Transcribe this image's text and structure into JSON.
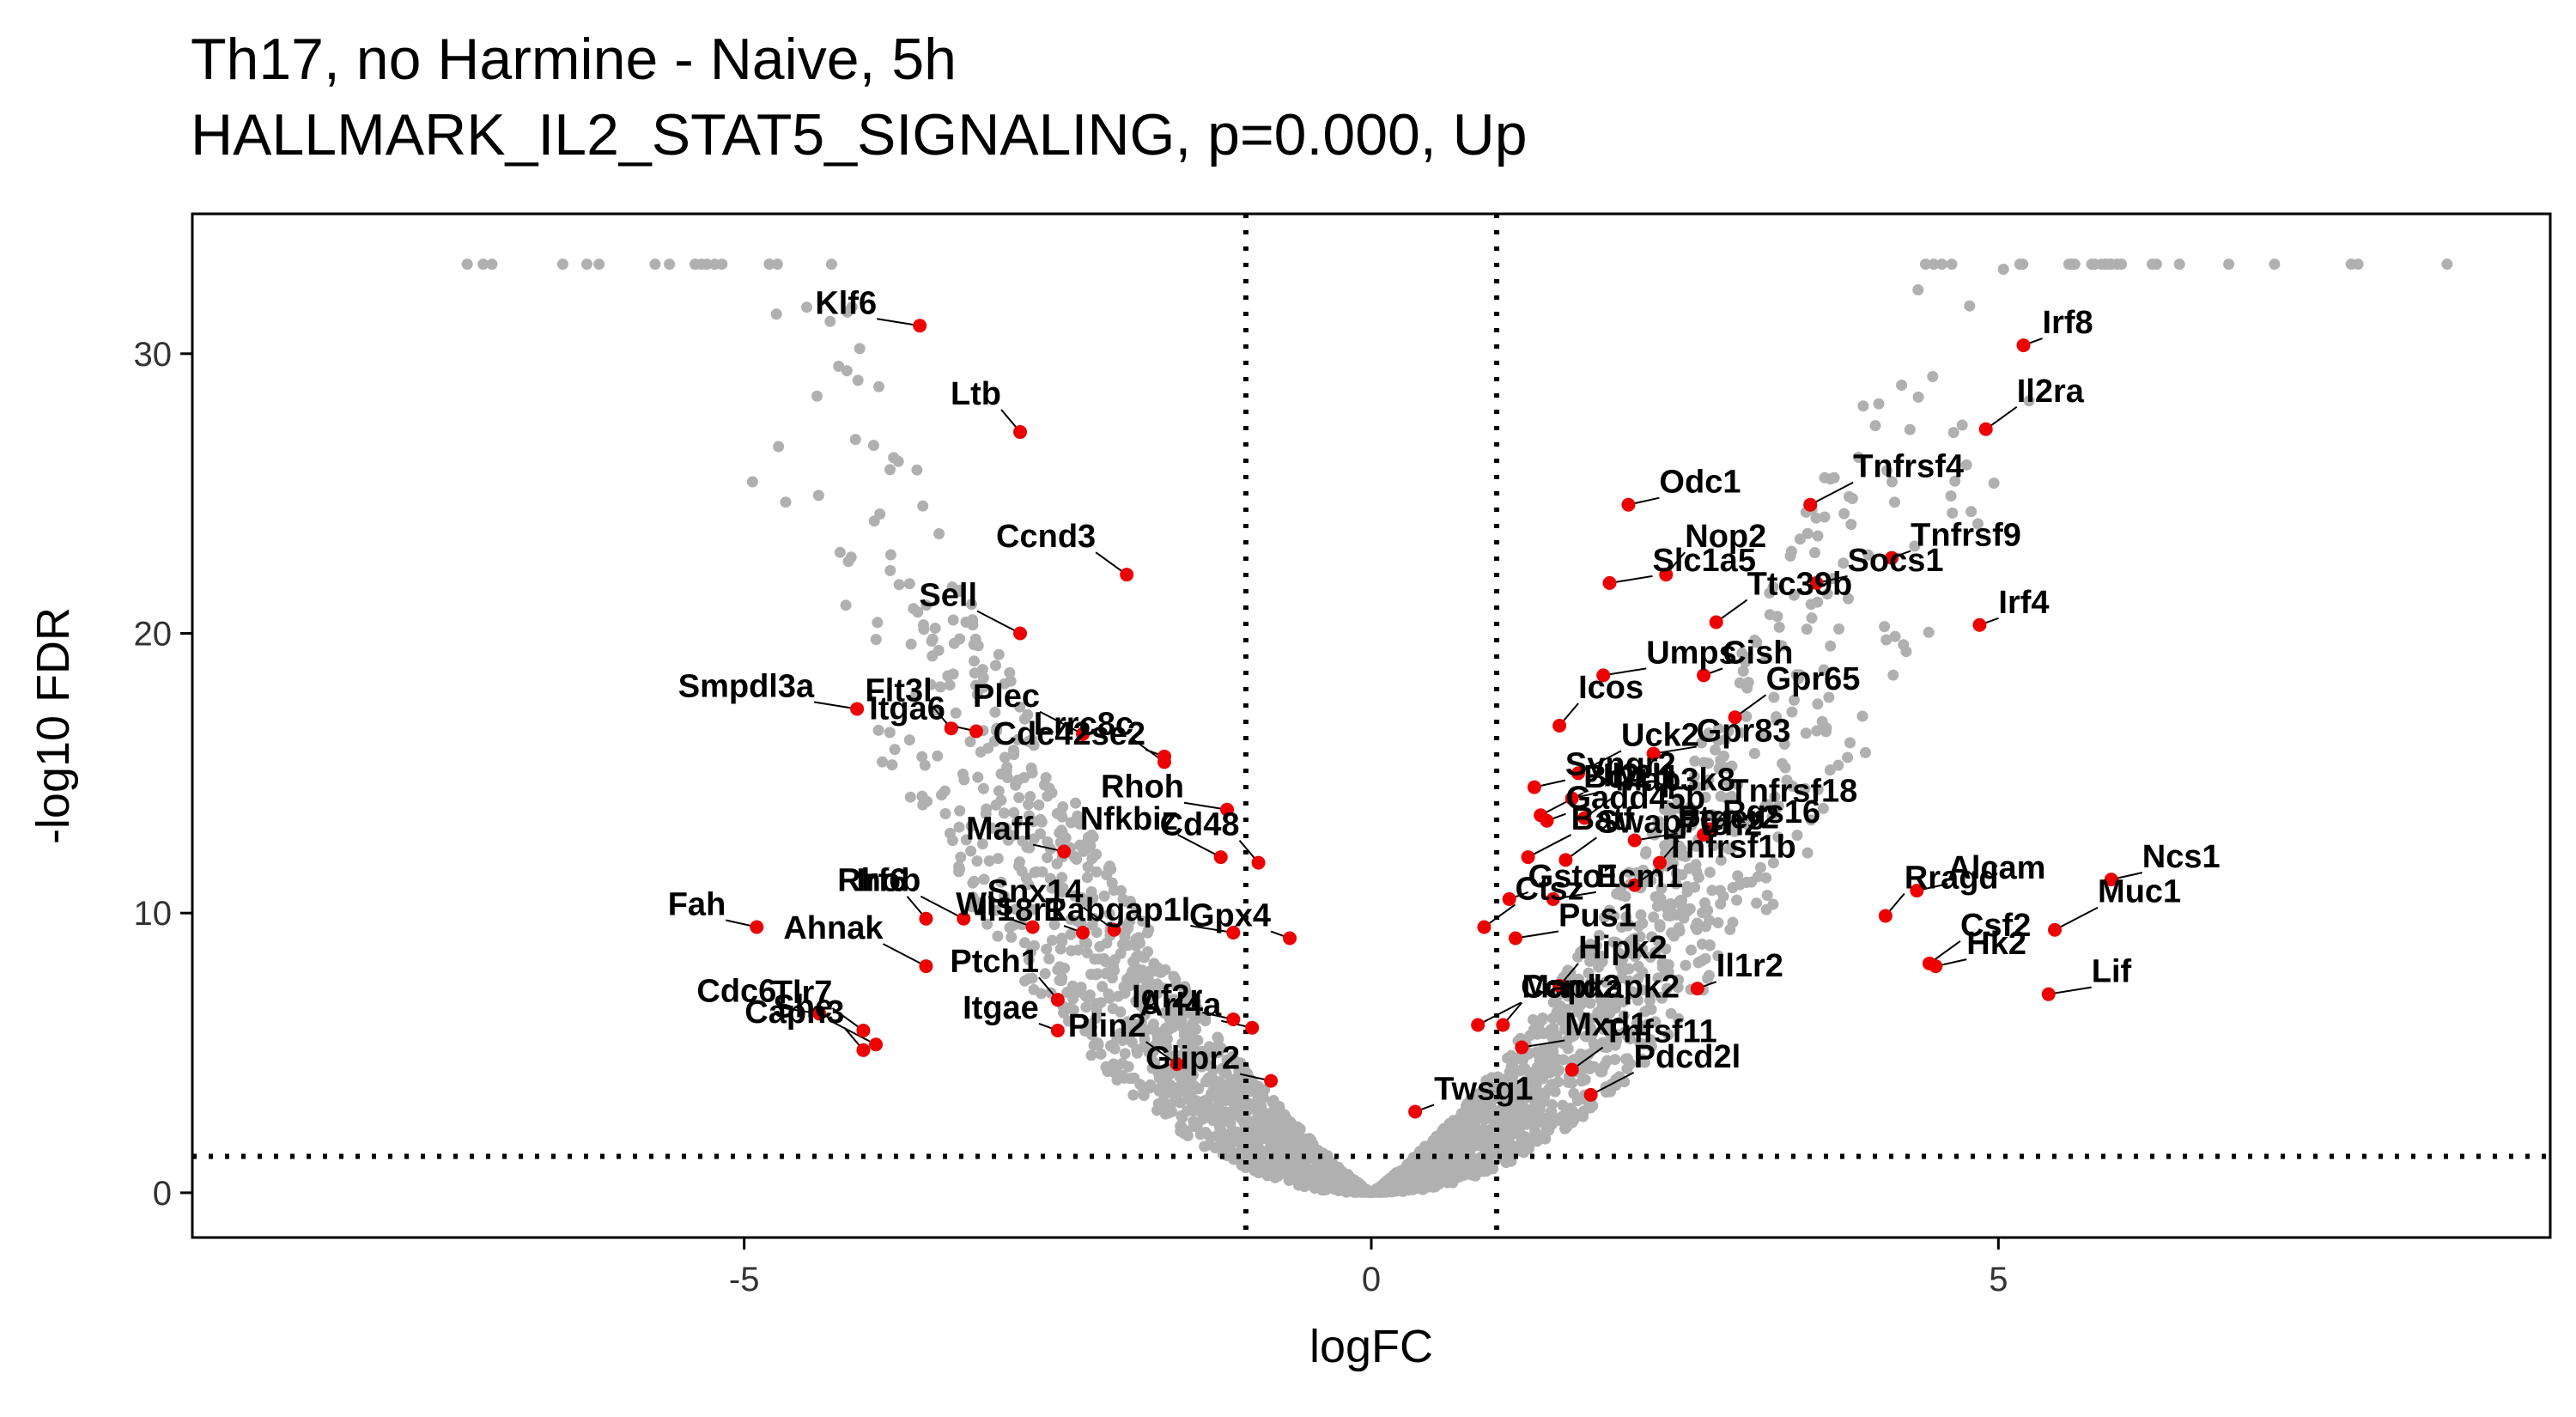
{
  "chart_data": {
    "type": "scatter",
    "title": "Th17, no Harmine - Naive, 5h",
    "subtitle": "HALLMARK_IL2_STAT5_SIGNALING, p=0.000, Up",
    "xlabel": "logFC",
    "ylabel": "-log10 FDR",
    "xlim": [
      -9.4,
      9.4
    ],
    "ylim": [
      -1.6,
      35.0
    ],
    "x_ticks": [
      -5,
      0,
      5
    ],
    "x_tick_labels": [
      "-5",
      "0",
      "5"
    ],
    "y_ticks": [
      0,
      10,
      20,
      30
    ],
    "y_tick_labels": [
      "0",
      "10",
      "20",
      "30"
    ],
    "grid": false,
    "threshold_lines": {
      "vertical": [
        -1,
        1
      ],
      "horizontal": [
        1.3
      ]
    },
    "colors": {
      "background_points": "#b0b0b0",
      "highlight_points": "#ee0000"
    },
    "highlighted_genes": [
      {
        "gene": "Irf8",
        "x": 5.2,
        "y": 30.3
      },
      {
        "gene": "Il2ra",
        "x": 4.9,
        "y": 27.3
      },
      {
        "gene": "Klf6",
        "x": -3.6,
        "y": 31.0
      },
      {
        "gene": "Ltb",
        "x": -2.8,
        "y": 27.2
      },
      {
        "gene": "Odc1",
        "x": 2.05,
        "y": 24.6
      },
      {
        "gene": "Tnfrsf4",
        "x": 3.5,
        "y": 24.6
      },
      {
        "gene": "Tnfrsf9",
        "x": 4.15,
        "y": 22.7
      },
      {
        "gene": "Ccnd3",
        "x": -1.95,
        "y": 22.1
      },
      {
        "gene": "Slc1a5",
        "x": 1.9,
        "y": 21.8
      },
      {
        "gene": "Nop2",
        "x": 2.35,
        "y": 22.1
      },
      {
        "gene": "Socs1",
        "x": 3.55,
        "y": 21.8
      },
      {
        "gene": "Sell",
        "x": -2.8,
        "y": 20.0
      },
      {
        "gene": "Irf4",
        "x": 4.85,
        "y": 20.3
      },
      {
        "gene": "Ttc39b",
        "x": 2.75,
        "y": 20.4
      },
      {
        "gene": "Umps",
        "x": 1.85,
        "y": 18.5
      },
      {
        "gene": "Icos",
        "x": 1.5,
        "y": 16.7
      },
      {
        "gene": "Syngr2",
        "x": 1.3,
        "y": 14.5
      },
      {
        "gene": "Uck2",
        "x": 1.65,
        "y": 15.0
      },
      {
        "gene": "Cish",
        "x": 2.65,
        "y": 18.5
      },
      {
        "gene": "Gpr65",
        "x": 2.9,
        "y": 17.0
      },
      {
        "gene": "Gpr83",
        "x": 2.25,
        "y": 15.7
      },
      {
        "gene": "Tnfrsf18",
        "x": 2.7,
        "y": 13.0
      },
      {
        "gene": "Il2rb",
        "x": 1.6,
        "y": 14.1
      },
      {
        "gene": "Bcl2l1",
        "x": 1.35,
        "y": 13.5
      },
      {
        "gene": "Gadd45b",
        "x": 1.4,
        "y": 13.3
      },
      {
        "gene": "Map3k8",
        "x": 1.7,
        "y": 13.4
      },
      {
        "gene": "Smpdl3a",
        "x": -4.1,
        "y": 17.3
      },
      {
        "gene": "Flt3l",
        "x": -3.35,
        "y": 16.6
      },
      {
        "gene": "Itga6",
        "x": -3.15,
        "y": 16.5
      },
      {
        "gene": "Plec",
        "x": -2.3,
        "y": 16.4
      },
      {
        "gene": "Cdc42se2",
        "x": -1.65,
        "y": 15.6
      },
      {
        "gene": "Lrrc8c",
        "x": -1.65,
        "y": 15.4
      },
      {
        "gene": "Rhoh",
        "x": -1.15,
        "y": 13.7
      },
      {
        "gene": "Cd48",
        "x": -0.9,
        "y": 11.8
      },
      {
        "gene": "Maff",
        "x": -2.45,
        "y": 12.2
      },
      {
        "gene": "Nfkbiz",
        "x": -1.2,
        "y": 12.0
      },
      {
        "gene": "Rgs16",
        "x": 2.65,
        "y": 12.8
      },
      {
        "gene": "Swap70",
        "x": 1.55,
        "y": 11.9
      },
      {
        "gene": "Ptger2",
        "x": 2.1,
        "y": 12.6
      },
      {
        "gene": "Ptrh2",
        "x": 2.3,
        "y": 11.8
      },
      {
        "gene": "Alcam",
        "x": 4.35,
        "y": 10.8
      },
      {
        "gene": "Batf",
        "x": 1.25,
        "y": 12.0
      },
      {
        "gene": "Gsto1",
        "x": 1.1,
        "y": 10.5
      },
      {
        "gene": "Tnfrsf1b",
        "x": 2.1,
        "y": 11.0
      },
      {
        "gene": "Ecm1",
        "x": 1.45,
        "y": 10.5
      },
      {
        "gene": "Rragd",
        "x": 4.1,
        "y": 9.9
      },
      {
        "gene": "Ncs1",
        "x": 5.9,
        "y": 11.2
      },
      {
        "gene": "Rhob",
        "x": -3.25,
        "y": 9.8
      },
      {
        "gene": "Wls",
        "x": -2.7,
        "y": 9.5
      },
      {
        "gene": "Snx14",
        "x": -2.05,
        "y": 9.4
      },
      {
        "gene": "Rabgap1l",
        "x": -1.1,
        "y": 9.3
      },
      {
        "gene": "Irf6",
        "x": -3.55,
        "y": 9.8
      },
      {
        "gene": "Fah",
        "x": -4.9,
        "y": 9.5
      },
      {
        "gene": "Ahnak",
        "x": -3.55,
        "y": 8.1
      },
      {
        "gene": "Il18r1",
        "x": -2.3,
        "y": 9.3
      },
      {
        "gene": "Ctsz",
        "x": 0.9,
        "y": 9.5
      },
      {
        "gene": "Pus1",
        "x": 1.15,
        "y": 9.1
      },
      {
        "gene": "Hipk2",
        "x": 1.5,
        "y": 7.4
      },
      {
        "gene": "Hk2",
        "x": 4.5,
        "y": 8.1
      },
      {
        "gene": "Muc1",
        "x": 5.45,
        "y": 9.4
      },
      {
        "gene": "Gpx4",
        "x": -0.65,
        "y": 9.1
      },
      {
        "gene": "Tlr7",
        "x": -4.05,
        "y": 5.8
      },
      {
        "gene": "Cdc6",
        "x": -4.4,
        "y": 6.4
      },
      {
        "gene": "Ptch1",
        "x": -2.5,
        "y": 6.9
      },
      {
        "gene": "Igf2r",
        "x": -1.1,
        "y": 6.2
      },
      {
        "gene": "Ccnd2",
        "x": 0.85,
        "y": 6.0
      },
      {
        "gene": "Il1r2",
        "x": 2.6,
        "y": 7.3
      },
      {
        "gene": "Csf2",
        "x": 4.45,
        "y": 8.2
      },
      {
        "gene": "Lif",
        "x": 5.4,
        "y": 7.1
      },
      {
        "gene": "Mapkapk2",
        "x": 1.05,
        "y": 6.0
      },
      {
        "gene": "Arl4a",
        "x": -0.95,
        "y": 5.9
      },
      {
        "gene": "She",
        "x": -3.95,
        "y": 5.3
      },
      {
        "gene": "Itgae",
        "x": -2.5,
        "y": 5.8
      },
      {
        "gene": "Plin2",
        "x": -1.55,
        "y": 4.6
      },
      {
        "gene": "Mxd1",
        "x": 1.2,
        "y": 5.2
      },
      {
        "gene": "Capn3",
        "x": -4.05,
        "y": 5.1
      },
      {
        "gene": "Glipr2",
        "x": -0.8,
        "y": 4.0
      },
      {
        "gene": "Pdcd2l",
        "x": 1.75,
        "y": 3.5
      },
      {
        "gene": "Twsg1",
        "x": 0.35,
        "y": 2.9
      },
      {
        "gene": "Tnfsf11",
        "x": 1.6,
        "y": 4.4
      }
    ]
  }
}
